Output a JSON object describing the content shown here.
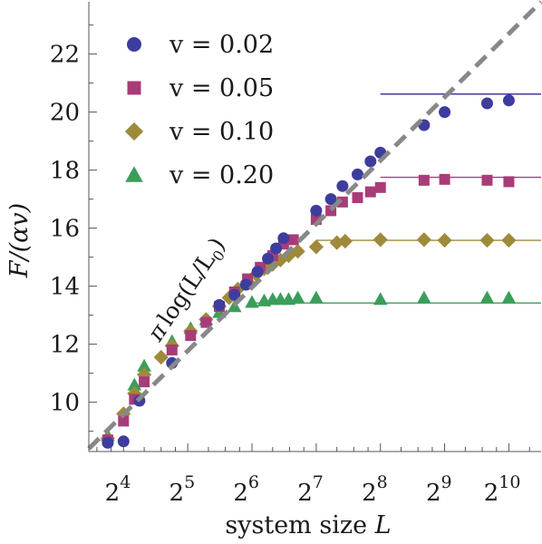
{
  "chart_data": {
    "type": "scatter",
    "title": "",
    "xlabel": {
      "prefix": "system size ",
      "var": "L"
    },
    "ylabel": {
      "text": "F/(αv)"
    },
    "x_scale": "log2",
    "xlim": [
      11.0,
      1450.0
    ],
    "ylim": [
      8.3,
      23.8
    ],
    "x_ticks": [
      {
        "value": 16,
        "base": "2",
        "exp": "4"
      },
      {
        "value": 32,
        "base": "2",
        "exp": "5"
      },
      {
        "value": 64,
        "base": "2",
        "exp": "6"
      },
      {
        "value": 128,
        "base": "2",
        "exp": "7"
      },
      {
        "value": 256,
        "base": "2",
        "exp": "8"
      },
      {
        "value": 512,
        "base": "2",
        "exp": "9"
      },
      {
        "value": 1024,
        "base": "2",
        "exp": "10"
      }
    ],
    "y_ticks": [
      10,
      12,
      14,
      16,
      18,
      20,
      22
    ],
    "legend": {
      "position": "top-left"
    },
    "reference_line": {
      "label": {
        "pi": "π",
        "pre": "log(L/L",
        "sub": "0",
        "post": ")"
      },
      "color": "#888888",
      "style": "dashed",
      "points": [
        [
          11.0,
          8.4
        ],
        [
          1450.0,
          23.8
        ]
      ]
    },
    "series": [
      {
        "name": "v = 0.02",
        "marker": "circle",
        "color": "#3d3d9e",
        "plateau": 20.62,
        "plateau_from": 256,
        "points": [
          [
            13.5,
            8.6
          ],
          [
            16,
            8.65
          ],
          [
            19,
            10.05
          ],
          [
            27,
            11.35
          ],
          [
            45,
            13.35
          ],
          [
            53,
            13.7
          ],
          [
            60,
            14.05
          ],
          [
            68,
            14.5
          ],
          [
            76,
            14.95
          ],
          [
            83,
            15.3
          ],
          [
            90,
            15.65
          ],
          [
            128,
            16.6
          ],
          [
            150,
            17.0
          ],
          [
            170,
            17.45
          ],
          [
            200,
            17.85
          ],
          [
            230,
            18.3
          ],
          [
            256,
            18.6
          ],
          [
            410,
            19.55
          ],
          [
            512,
            20.0
          ],
          [
            810,
            20.3
          ],
          [
            1024,
            20.4
          ]
        ]
      },
      {
        "name": "v = 0.05",
        "marker": "square",
        "color": "#a83c78",
        "plateau": 17.75,
        "plateau_from": 256,
        "points": [
          [
            13.5,
            8.7
          ],
          [
            16,
            9.35
          ],
          [
            18,
            10.1
          ],
          [
            20,
            10.7
          ],
          [
            27,
            11.8
          ],
          [
            33,
            12.3
          ],
          [
            39,
            12.75
          ],
          [
            45,
            13.3
          ],
          [
            53,
            13.8
          ],
          [
            61,
            14.25
          ],
          [
            70,
            14.65
          ],
          [
            80,
            15.05
          ],
          [
            90,
            15.45
          ],
          [
            100,
            15.6
          ],
          [
            128,
            16.3
          ],
          [
            150,
            16.6
          ],
          [
            170,
            16.9
          ],
          [
            200,
            17.05
          ],
          [
            230,
            17.25
          ],
          [
            256,
            17.4
          ],
          [
            410,
            17.65
          ],
          [
            512,
            17.68
          ],
          [
            810,
            17.65
          ],
          [
            1024,
            17.6
          ]
        ]
      },
      {
        "name": "v = 0.10",
        "marker": "diamond",
        "color": "#9e8a3a",
        "plateau": 15.58,
        "plateau_from": 128,
        "points": [
          [
            13.5,
            8.75
          ],
          [
            16,
            9.6
          ],
          [
            18,
            10.3
          ],
          [
            20,
            10.95
          ],
          [
            24,
            11.55
          ],
          [
            27,
            11.95
          ],
          [
            33,
            12.45
          ],
          [
            39,
            12.85
          ],
          [
            45,
            13.3
          ],
          [
            50,
            13.6
          ],
          [
            55,
            13.9
          ],
          [
            61,
            14.15
          ],
          [
            67,
            14.4
          ],
          [
            73,
            14.6
          ],
          [
            80,
            14.75
          ],
          [
            87,
            14.9
          ],
          [
            95,
            15.05
          ],
          [
            105,
            15.2
          ],
          [
            128,
            15.35
          ],
          [
            160,
            15.5
          ],
          [
            175,
            15.55
          ],
          [
            256,
            15.6
          ],
          [
            410,
            15.6
          ],
          [
            512,
            15.58
          ],
          [
            810,
            15.58
          ],
          [
            1024,
            15.58
          ]
        ]
      },
      {
        "name": "v = 0.20",
        "marker": "triangle",
        "color": "#3a9e5a",
        "plateau": 13.42,
        "plateau_from": 64,
        "points": [
          [
            13.5,
            8.85
          ],
          [
            18,
            10.6
          ],
          [
            20,
            11.25
          ],
          [
            27,
            12.1
          ],
          [
            33,
            12.55
          ],
          [
            39,
            12.85
          ],
          [
            45,
            13.1
          ],
          [
            53,
            13.3
          ],
          [
            64,
            13.45
          ],
          [
            73,
            13.5
          ],
          [
            80,
            13.55
          ],
          [
            87,
            13.55
          ],
          [
            95,
            13.55
          ],
          [
            105,
            13.6
          ],
          [
            128,
            13.6
          ],
          [
            256,
            13.55
          ],
          [
            410,
            13.6
          ],
          [
            810,
            13.6
          ],
          [
            1024,
            13.6
          ]
        ]
      }
    ]
  }
}
